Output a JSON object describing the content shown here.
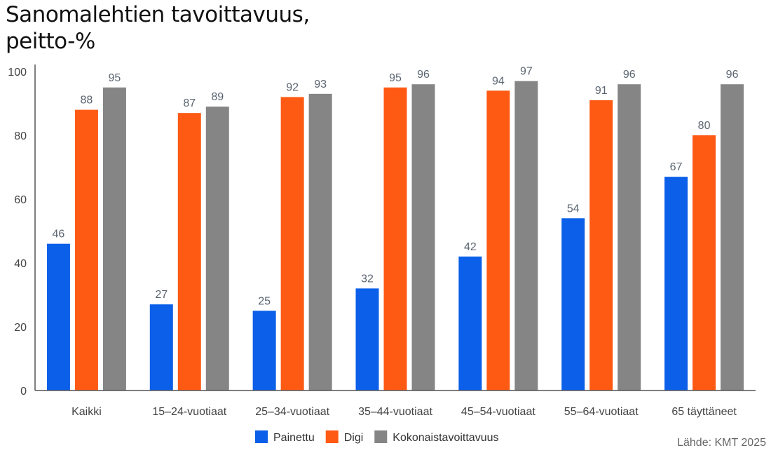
{
  "chart_data": {
    "type": "bar",
    "title": [
      "Sanomalehtien tavoittavuus,",
      "peitto-%"
    ],
    "categories": [
      "Kaikki",
      "15–24-vuotiaat",
      "25–34-vuotiaat",
      "35–44-vuotiaat",
      "45–54-vuotiaat",
      "55–64-vuotiaat",
      "65 täyttäneet"
    ],
    "series": [
      {
        "name": "Painettu",
        "color": "#0b5fe8",
        "values": [
          46,
          27,
          25,
          32,
          42,
          54,
          67
        ]
      },
      {
        "name": "Digi",
        "color": "#ff5a14",
        "values": [
          88,
          87,
          92,
          95,
          94,
          91,
          80
        ]
      },
      {
        "name": "Kokonaistavoittavuus",
        "color": "#858585",
        "values": [
          95,
          89,
          93,
          96,
          97,
          96,
          96
        ]
      }
    ],
    "ylim": [
      0,
      100
    ],
    "yticks": [
      0,
      20,
      40,
      60,
      80,
      100
    ],
    "grid": false,
    "legend": "bottom",
    "data_labels": true
  },
  "source": "Lähde: KMT 2025"
}
